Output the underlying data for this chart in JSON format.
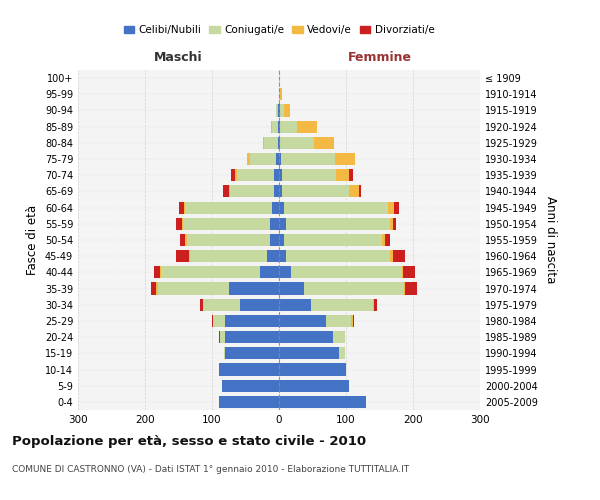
{
  "age_groups": [
    "0-4",
    "5-9",
    "10-14",
    "15-19",
    "20-24",
    "25-29",
    "30-34",
    "35-39",
    "40-44",
    "45-49",
    "50-54",
    "55-59",
    "60-64",
    "65-69",
    "70-74",
    "75-79",
    "80-84",
    "85-89",
    "90-94",
    "95-99",
    "100+"
  ],
  "birth_years": [
    "2005-2009",
    "2000-2004",
    "1995-1999",
    "1990-1994",
    "1985-1989",
    "1980-1984",
    "1975-1979",
    "1970-1974",
    "1965-1969",
    "1960-1964",
    "1955-1959",
    "1950-1954",
    "1945-1949",
    "1940-1944",
    "1935-1939",
    "1930-1934",
    "1925-1929",
    "1920-1924",
    "1915-1919",
    "1910-1914",
    "≤ 1909"
  ],
  "male": {
    "celibi": [
      90,
      85,
      90,
      80,
      80,
      80,
      58,
      75,
      28,
      18,
      13,
      13,
      10,
      8,
      7,
      4,
      2,
      2,
      2,
      0,
      0
    ],
    "coniugati": [
      0,
      0,
      0,
      2,
      8,
      18,
      55,
      105,
      148,
      115,
      125,
      130,
      130,
      65,
      55,
      40,
      20,
      8,
      2,
      0,
      0
    ],
    "vedovi": [
      0,
      0,
      0,
      0,
      0,
      0,
      0,
      3,
      2,
      2,
      2,
      2,
      2,
      2,
      4,
      4,
      2,
      2,
      0,
      0,
      0
    ],
    "divorziati": [
      0,
      0,
      0,
      0,
      2,
      2,
      5,
      8,
      8,
      18,
      8,
      8,
      8,
      8,
      5,
      0,
      0,
      0,
      0,
      0,
      0
    ]
  },
  "female": {
    "nubili": [
      130,
      105,
      100,
      90,
      80,
      70,
      48,
      38,
      18,
      10,
      8,
      10,
      8,
      5,
      5,
      3,
      2,
      2,
      2,
      0,
      0
    ],
    "coniugate": [
      0,
      0,
      0,
      8,
      18,
      38,
      92,
      148,
      165,
      155,
      145,
      155,
      155,
      100,
      80,
      80,
      50,
      25,
      5,
      2,
      0
    ],
    "vedove": [
      0,
      0,
      0,
      0,
      0,
      2,
      2,
      2,
      2,
      5,
      5,
      5,
      8,
      15,
      20,
      30,
      30,
      30,
      10,
      2,
      0
    ],
    "divorziate": [
      0,
      0,
      0,
      0,
      0,
      2,
      5,
      18,
      18,
      18,
      8,
      5,
      8,
      3,
      5,
      0,
      0,
      0,
      0,
      0,
      0
    ]
  },
  "colors": {
    "celibi": "#4472C4",
    "coniugati": "#C5D9A0",
    "vedovi": "#F4B942",
    "divorziati": "#CC2020"
  },
  "xlim": 300,
  "title": "Popolazione per età, sesso e stato civile - 2010",
  "subtitle": "COMUNE DI CASTRONNO (VA) - Dati ISTAT 1° gennaio 2010 - Elaborazione TUTTITALIA.IT",
  "xlabel_left": "Maschi",
  "xlabel_right": "Femmine",
  "ylabel_left": "Fasce di età",
  "ylabel_right": "Anni di nascita",
  "bg_color": "#FFFFFF",
  "plot_bg": "#F4F4F4",
  "grid_color": "#CCCCCC"
}
